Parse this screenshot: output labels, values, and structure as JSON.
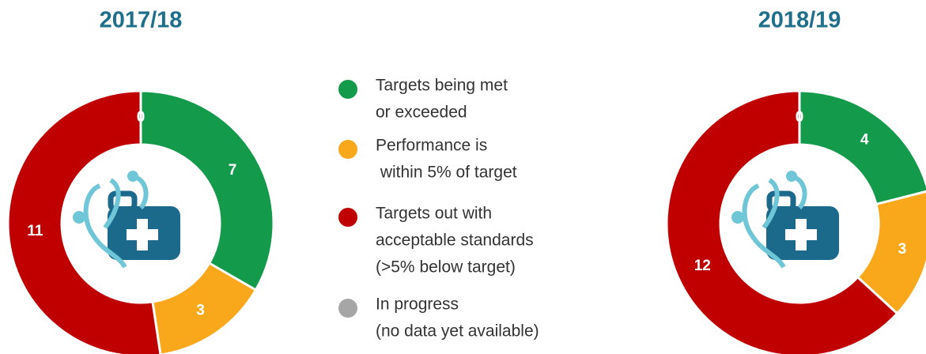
{
  "chart_data": [
    {
      "type": "pie",
      "title": "2017/18",
      "values": [
        7,
        3,
        11,
        0
      ]
    },
    {
      "type": "pie",
      "title": "2018/19",
      "values": [
        4,
        3,
        12,
        0
      ]
    }
  ],
  "legend": {
    "items": [
      {
        "lines": [
          "Targets being met",
          "or exceeded"
        ],
        "color": "#139a4a"
      },
      {
        "lines": [
          "Performance is",
          " within 5% of target"
        ],
        "color": "#f9a81c"
      },
      {
        "lines": [
          "Targets out with",
          "acceptable standards",
          "(>5% below target)"
        ],
        "color": "#c00000"
      },
      {
        "lines": [
          "In progress",
          "(no data yet available)"
        ],
        "color": "#a6a6a6"
      }
    ]
  }
}
